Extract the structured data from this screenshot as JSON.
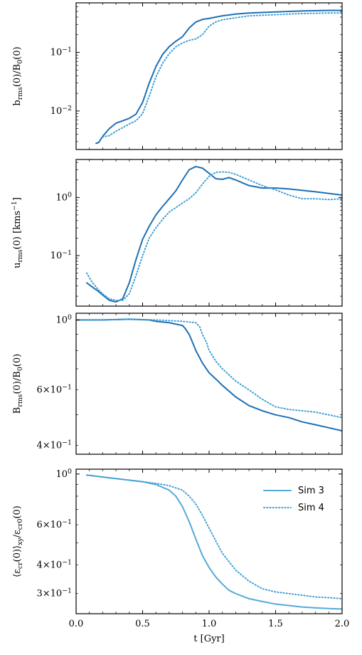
{
  "chart_data": [
    {
      "type": "line",
      "ylabel": "b_rms(0)/B_0(0)",
      "yscale": "log",
      "ylim": [
        0.0022,
        0.7
      ],
      "xlim": [
        0.0,
        2.0
      ],
      "y_ticks": [
        {
          "value": 0.01,
          "label": "10^-2"
        },
        {
          "value": 0.1,
          "label": "10^-1"
        }
      ],
      "x_ticklabels_shown": false,
      "series": [
        {
          "style": "solid",
          "color": "#1f6fb4",
          "x": [
            0.15,
            0.17,
            0.2,
            0.25,
            0.3,
            0.35,
            0.4,
            0.45,
            0.5,
            0.55,
            0.6,
            0.65,
            0.7,
            0.75,
            0.8,
            0.85,
            0.9,
            0.95,
            1.0,
            1.05,
            1.1,
            1.2,
            1.3,
            1.5,
            1.7,
            1.9,
            2.0
          ],
          "y": [
            0.0028,
            0.0029,
            0.0037,
            0.005,
            0.0062,
            0.0068,
            0.0075,
            0.0088,
            0.014,
            0.03,
            0.057,
            0.092,
            0.125,
            0.155,
            0.185,
            0.26,
            0.33,
            0.365,
            0.38,
            0.4,
            0.42,
            0.45,
            0.47,
            0.49,
            0.51,
            0.52,
            0.52
          ]
        },
        {
          "style": "dotted",
          "color": "#3f9fd6",
          "x": [
            0.2,
            0.25,
            0.3,
            0.35,
            0.4,
            0.45,
            0.5,
            0.55,
            0.6,
            0.65,
            0.7,
            0.75,
            0.8,
            0.85,
            0.9,
            0.95,
            1.0,
            1.05,
            1.1,
            1.2,
            1.3,
            1.5,
            1.7,
            1.9,
            2.0
          ],
          "y": [
            0.0036,
            0.0038,
            0.0045,
            0.0052,
            0.006,
            0.0068,
            0.009,
            0.018,
            0.038,
            0.065,
            0.095,
            0.125,
            0.145,
            0.16,
            0.17,
            0.2,
            0.28,
            0.33,
            0.36,
            0.39,
            0.42,
            0.44,
            0.46,
            0.47,
            0.47
          ]
        }
      ]
    },
    {
      "type": "line",
      "ylabel": "u_rms(0) [kms^-1]",
      "yscale": "log",
      "ylim": [
        0.0135,
        4.5
      ],
      "xlim": [
        0.0,
        2.0
      ],
      "y_ticks": [
        {
          "value": 0.1,
          "label": "10^-1"
        },
        {
          "value": 1.0,
          "label": "10^0"
        }
      ],
      "x_ticklabels_shown": false,
      "series": [
        {
          "style": "solid",
          "color": "#1f6fb4",
          "x": [
            0.08,
            0.12,
            0.16,
            0.2,
            0.25,
            0.3,
            0.35,
            0.4,
            0.45,
            0.5,
            0.55,
            0.6,
            0.65,
            0.7,
            0.75,
            0.8,
            0.85,
            0.9,
            0.95,
            1.0,
            1.05,
            1.1,
            1.15,
            1.2,
            1.3,
            1.4,
            1.5,
            1.6,
            1.8,
            2.0
          ],
          "y": [
            0.034,
            0.029,
            0.025,
            0.021,
            0.017,
            0.016,
            0.018,
            0.034,
            0.085,
            0.19,
            0.32,
            0.5,
            0.7,
            0.95,
            1.3,
            2.0,
            3.0,
            3.4,
            3.2,
            2.6,
            2.1,
            2.05,
            2.2,
            2.0,
            1.6,
            1.45,
            1.45,
            1.4,
            1.25,
            1.1
          ]
        },
        {
          "style": "dotted",
          "color": "#3f9fd6",
          "x": [
            0.08,
            0.12,
            0.16,
            0.2,
            0.25,
            0.3,
            0.35,
            0.4,
            0.45,
            0.5,
            0.55,
            0.6,
            0.65,
            0.7,
            0.75,
            0.8,
            0.85,
            0.9,
            0.95,
            1.0,
            1.05,
            1.1,
            1.15,
            1.2,
            1.3,
            1.4,
            1.5,
            1.6,
            1.7,
            1.8,
            1.9,
            2.0
          ],
          "y": [
            0.05,
            0.035,
            0.027,
            0.022,
            0.018,
            0.017,
            0.017,
            0.022,
            0.045,
            0.1,
            0.2,
            0.3,
            0.42,
            0.56,
            0.67,
            0.8,
            0.95,
            1.2,
            1.7,
            2.3,
            2.7,
            2.75,
            2.7,
            2.5,
            2.0,
            1.6,
            1.35,
            1.1,
            0.95,
            0.95,
            0.92,
            0.95
          ]
        }
      ]
    },
    {
      "type": "line",
      "ylabel": "B_rms(0)/B_0(0)",
      "yscale": "log",
      "ylim": [
        0.375,
        1.05
      ],
      "xlim": [
        0.0,
        2.0
      ],
      "y_ticks": [
        {
          "value": 0.4,
          "label": "4×10^-1"
        },
        {
          "value": 0.6,
          "label": "6×10^-1"
        },
        {
          "value": 1.0,
          "label": "10^0"
        }
      ],
      "x_ticklabels_shown": false,
      "series": [
        {
          "style": "solid",
          "color": "#1f6fb4",
          "x": [
            0.0,
            0.2,
            0.4,
            0.55,
            0.6,
            0.7,
            0.8,
            0.82,
            0.85,
            0.88,
            0.9,
            0.95,
            1.0,
            1.05,
            1.1,
            1.2,
            1.3,
            1.4,
            1.5,
            1.6,
            1.7,
            1.8,
            1.9,
            2.0
          ],
          "y": [
            1.0,
            1.0,
            1.005,
            1.0,
            0.99,
            0.98,
            0.96,
            0.94,
            0.9,
            0.84,
            0.8,
            0.73,
            0.68,
            0.65,
            0.62,
            0.57,
            0.535,
            0.515,
            0.5,
            0.49,
            0.475,
            0.465,
            0.455,
            0.445
          ]
        },
        {
          "style": "dotted",
          "color": "#3f9fd6",
          "x": [
            0.0,
            0.2,
            0.4,
            0.6,
            0.8,
            0.9,
            0.93,
            0.95,
            0.98,
            1.0,
            1.05,
            1.1,
            1.2,
            1.3,
            1.4,
            1.5,
            1.6,
            1.7,
            1.8,
            1.9,
            2.0
          ],
          "y": [
            1.0,
            1.0,
            1.005,
            1.0,
            0.99,
            0.98,
            0.95,
            0.9,
            0.85,
            0.8,
            0.74,
            0.7,
            0.64,
            0.6,
            0.56,
            0.53,
            0.52,
            0.515,
            0.51,
            0.5,
            0.49
          ]
        }
      ]
    },
    {
      "type": "line",
      "ylabel": "⟨ε_cr(0)⟩_xy/ε_cr0(0)",
      "yscale": "log",
      "ylim": [
        0.245,
        1.05
      ],
      "xlim": [
        0.0,
        2.0
      ],
      "y_ticks": [
        {
          "value": 0.3,
          "label": "3×10^-1"
        },
        {
          "value": 0.4,
          "label": "4×10^-1"
        },
        {
          "value": 0.6,
          "label": "6×10^-1"
        },
        {
          "value": 1.0,
          "label": "10^0"
        }
      ],
      "xlabel": "t [Gyr]",
      "x_ticks": [
        {
          "value": 0.0,
          "label": "0.0"
        },
        {
          "value": 0.5,
          "label": "0.5"
        },
        {
          "value": 1.0,
          "label": "1.0"
        },
        {
          "value": 1.5,
          "label": "1.5"
        },
        {
          "value": 2.0,
          "label": "2.0"
        }
      ],
      "legend": {
        "placement": "upper right"
      },
      "series": [
        {
          "name": "Sim 3",
          "style": "solid",
          "color": "#56a9d9",
          "x": [
            0.08,
            0.2,
            0.3,
            0.4,
            0.5,
            0.6,
            0.7,
            0.75,
            0.8,
            0.85,
            0.9,
            0.95,
            1.0,
            1.05,
            1.1,
            1.15,
            1.2,
            1.3,
            1.4,
            1.5,
            1.6,
            1.7,
            1.8,
            1.9,
            2.0
          ],
          "y": [
            0.99,
            0.97,
            0.955,
            0.94,
            0.925,
            0.9,
            0.85,
            0.8,
            0.72,
            0.62,
            0.52,
            0.44,
            0.39,
            0.355,
            0.33,
            0.31,
            0.3,
            0.285,
            0.277,
            0.27,
            0.266,
            0.262,
            0.26,
            0.258,
            0.257
          ]
        },
        {
          "name": "Sim 4",
          "style": "dotted",
          "color": "#3f9fd6",
          "x": [
            0.08,
            0.2,
            0.3,
            0.4,
            0.5,
            0.6,
            0.7,
            0.8,
            0.85,
            0.9,
            0.95,
            1.0,
            1.05,
            1.1,
            1.2,
            1.3,
            1.4,
            1.5,
            1.6,
            1.7,
            1.8,
            1.9,
            2.0
          ],
          "y": [
            0.99,
            0.97,
            0.955,
            0.94,
            0.925,
            0.91,
            0.89,
            0.85,
            0.8,
            0.74,
            0.66,
            0.58,
            0.51,
            0.45,
            0.38,
            0.34,
            0.315,
            0.305,
            0.3,
            0.295,
            0.29,
            0.288,
            0.285
          ]
        }
      ]
    }
  ]
}
